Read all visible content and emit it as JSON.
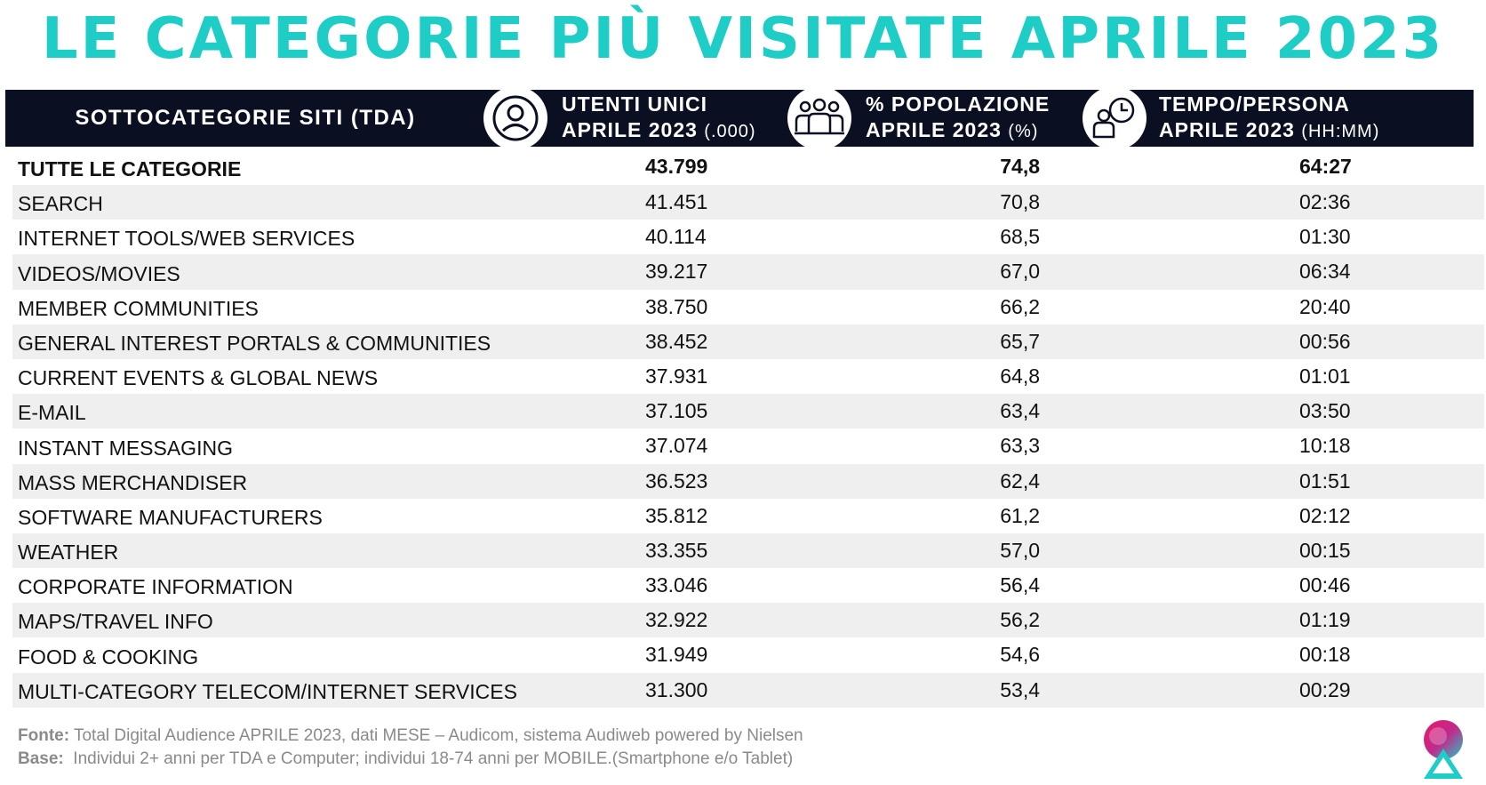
{
  "title": "LE CATEGORIE PIÙ VISITATE APRILE  2023",
  "header": {
    "col_category": "SOTTOCATEGORIE SITI  (TDA)",
    "col_users_line1": "UTENTI UNICI",
    "col_users_line2": "APRILE 2023",
    "col_users_unit": "(.000)",
    "col_pct_line1": "% POPOLAZIONE",
    "col_pct_line2": "APRILE 2023",
    "col_pct_unit": "(%)",
    "col_time_line1": "TEMPO/PERSONA",
    "col_time_line2": "APRILE 2023",
    "col_time_unit": "(HH:MM)",
    "icons": [
      "user-icon",
      "group-icon",
      "user-clock-icon"
    ]
  },
  "rows": [
    {
      "name": "TUTTE LE CATEGORIE",
      "users": "43.799",
      "pct": "74,8",
      "time": "64:27"
    },
    {
      "name": "SEARCH",
      "users": "41.451",
      "pct": "70,8",
      "time": "02:36"
    },
    {
      "name": "INTERNET TOOLS/WEB SERVICES",
      "users": "40.114",
      "pct": "68,5",
      "time": "01:30"
    },
    {
      "name": "VIDEOS/MOVIES",
      "users": "39.217",
      "pct": "67,0",
      "time": "06:34"
    },
    {
      "name": "MEMBER COMMUNITIES",
      "users": "38.750",
      "pct": "66,2",
      "time": "20:40"
    },
    {
      "name": "GENERAL INTEREST PORTALS & COMMUNITIES",
      "users": "38.452",
      "pct": "65,7",
      "time": "00:56"
    },
    {
      "name": "CURRENT EVENTS & GLOBAL NEWS",
      "users": "37.931",
      "pct": "64,8",
      "time": "01:01"
    },
    {
      "name": "E-MAIL",
      "users": "37.105",
      "pct": "63,4",
      "time": "03:50"
    },
    {
      "name": "INSTANT MESSAGING",
      "users": "37.074",
      "pct": "63,3",
      "time": "10:18"
    },
    {
      "name": "MASS MERCHANDISER",
      "users": "36.523",
      "pct": "62,4",
      "time": "01:51"
    },
    {
      "name": "SOFTWARE MANUFACTURERS",
      "users": "35.812",
      "pct": "61,2",
      "time": "02:12"
    },
    {
      "name": "WEATHER",
      "users": "33.355",
      "pct": "57,0",
      "time": "00:15"
    },
    {
      "name": "CORPORATE INFORMATION",
      "users": "33.046",
      "pct": "56,4",
      "time": "00:46"
    },
    {
      "name": "MAPS/TRAVEL INFO",
      "users": "32.922",
      "pct": "56,2",
      "time": "01:19"
    },
    {
      "name": "FOOD & COOKING",
      "users": "31.949",
      "pct": "54,6",
      "time": "00:18"
    },
    {
      "name": "MULTI-CATEGORY TELECOM/INTERNET SERVICES",
      "users": "31.300",
      "pct": "53,4",
      "time": "00:29"
    }
  ],
  "footer": {
    "source_label": "Fonte:",
    "source_text": " Total Digital Audience APRILE 2023, dati MESE – Audicom, sistema Audiweb powered by Nielsen",
    "base_label": "Base:",
    "base_text": "  Individui 2+ anni per TDA e Computer; individui 18-74 anni per MOBILE.(Smartphone e/o Tablet)"
  },
  "colors": {
    "title": "#1ecdc6",
    "header_bg": "#0b0f22",
    "row_shade": "#efefef",
    "footer_text": "#8a8a8a"
  },
  "logo": "audicom-triangle-logo"
}
